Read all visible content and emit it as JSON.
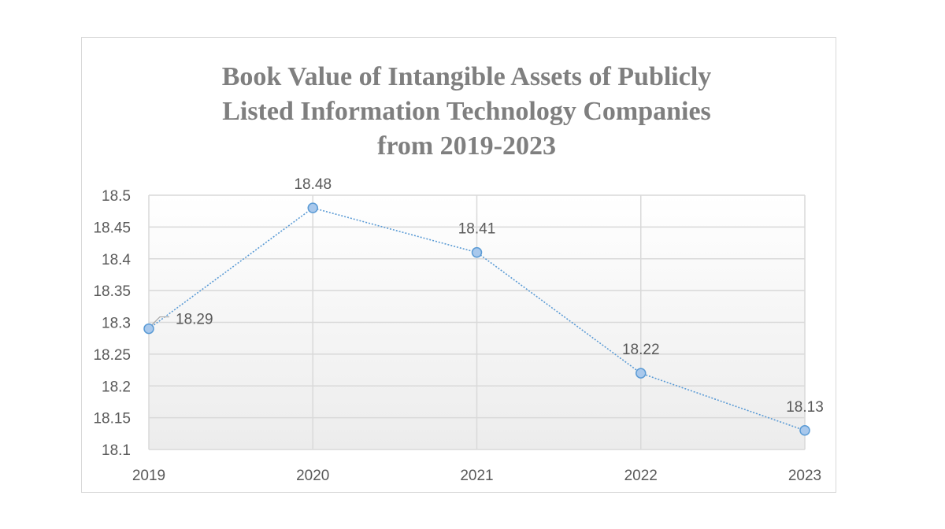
{
  "chart_data": {
    "type": "line",
    "title_lines": [
      "Book Value of Intangible Assets of Publicly",
      "Listed Information Technology Companies",
      "from 2019-2023"
    ],
    "categories": [
      "2019",
      "2020",
      "2021",
      "2022",
      "2023"
    ],
    "series": [
      {
        "values": [
          18.29,
          18.48,
          18.41,
          18.22,
          18.13
        ],
        "color": "#5b9bd5"
      }
    ],
    "data_labels": [
      "18.29",
      "18.48",
      "18.41",
      "18.22",
      "18.13"
    ],
    "ylim": [
      18.1,
      18.5
    ],
    "y_ticks": [
      "18.1",
      "18.15",
      "18.2",
      "18.25",
      "18.3",
      "18.35",
      "18.4",
      "18.45",
      "18.5"
    ],
    "grid": true,
    "legend": "none"
  }
}
